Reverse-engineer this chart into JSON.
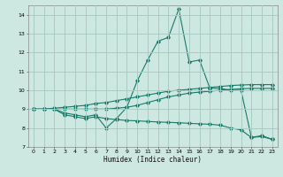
{
  "xlabel": "Humidex (Indice chaleur)",
  "background_color": "#cce8e0",
  "grid_color": "#aaccC4",
  "line_color": "#1a7a6a",
  "x": [
    0,
    1,
    2,
    3,
    4,
    5,
    6,
    7,
    8,
    9,
    10,
    11,
    12,
    13,
    14,
    15,
    16,
    17,
    18,
    19,
    20,
    21,
    22,
    23
  ],
  "line1": [
    9.0,
    9.0,
    9.0,
    8.8,
    8.7,
    8.6,
    8.7,
    8.0,
    8.5,
    9.1,
    10.5,
    11.6,
    12.6,
    12.8,
    14.3,
    11.5,
    11.6,
    10.1,
    10.1,
    10.0,
    10.0,
    7.5,
    7.6,
    7.4
  ],
  "line2": [
    9.0,
    9.0,
    9.05,
    9.1,
    9.15,
    9.2,
    9.3,
    9.35,
    9.45,
    9.55,
    9.65,
    9.75,
    9.85,
    9.95,
    10.0,
    10.05,
    10.1,
    10.15,
    10.2,
    10.25,
    10.28,
    10.3,
    10.3,
    10.3
  ],
  "line3": [
    9.0,
    9.0,
    9.0,
    9.0,
    9.0,
    9.0,
    9.0,
    9.0,
    9.05,
    9.1,
    9.2,
    9.35,
    9.5,
    9.65,
    9.75,
    9.85,
    9.9,
    9.95,
    10.0,
    10.05,
    10.08,
    10.1,
    10.1,
    10.1
  ],
  "line4": [
    9.0,
    9.0,
    9.0,
    8.7,
    8.6,
    8.5,
    8.6,
    8.5,
    8.45,
    8.4,
    8.38,
    8.35,
    8.32,
    8.3,
    8.28,
    8.25,
    8.22,
    8.2,
    8.15,
    8.0,
    7.9,
    7.5,
    7.55,
    7.4
  ],
  "ylim": [
    7,
    14.5
  ],
  "xlim": [
    -0.5,
    23.5
  ],
  "yticks": [
    7,
    8,
    9,
    10,
    11,
    12,
    13,
    14
  ],
  "xticks": [
    0,
    1,
    2,
    3,
    4,
    5,
    6,
    7,
    8,
    9,
    10,
    11,
    12,
    13,
    14,
    15,
    16,
    17,
    18,
    19,
    20,
    21,
    22,
    23
  ]
}
